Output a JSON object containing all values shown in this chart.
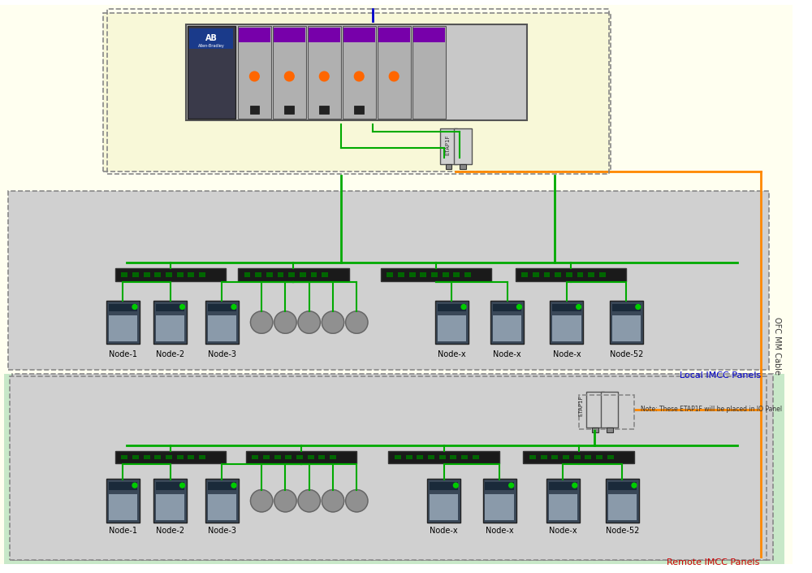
{
  "bg_outer": "#fffff0",
  "bg_local_panel": "#d0d0d0",
  "bg_remote_panel": "#c8e8c8",
  "bg_remote_inner": "#d0d0d0",
  "bg_pac_panel": "#fffff0",
  "ofc_cable_color": "#ff8800",
  "green_line_color": "#00aa00",
  "blue_line_color": "#0000cc",
  "title_color": "#0000cc",
  "node_labels_local": [
    "Node-1",
    "Node-2",
    "Node-3",
    "Node-x",
    "Node-x",
    "Node-x",
    "Node-52"
  ],
  "node_labels_remote": [
    "Node-1",
    "Node-2",
    "Node-3",
    "Node-x",
    "Node-x",
    "Node-x",
    "Node-52"
  ],
  "local_label": "Local IMCC Panels",
  "remote_label": "Remote IMCC Panels",
  "ofc_label": "OFC MM Cable",
  "etap_note": "Note: These ETAP1F will be placed in IO Panel",
  "switch_color": "#222222",
  "device_body_color": "#3a4a5a",
  "device_light_color": "#00cc00"
}
